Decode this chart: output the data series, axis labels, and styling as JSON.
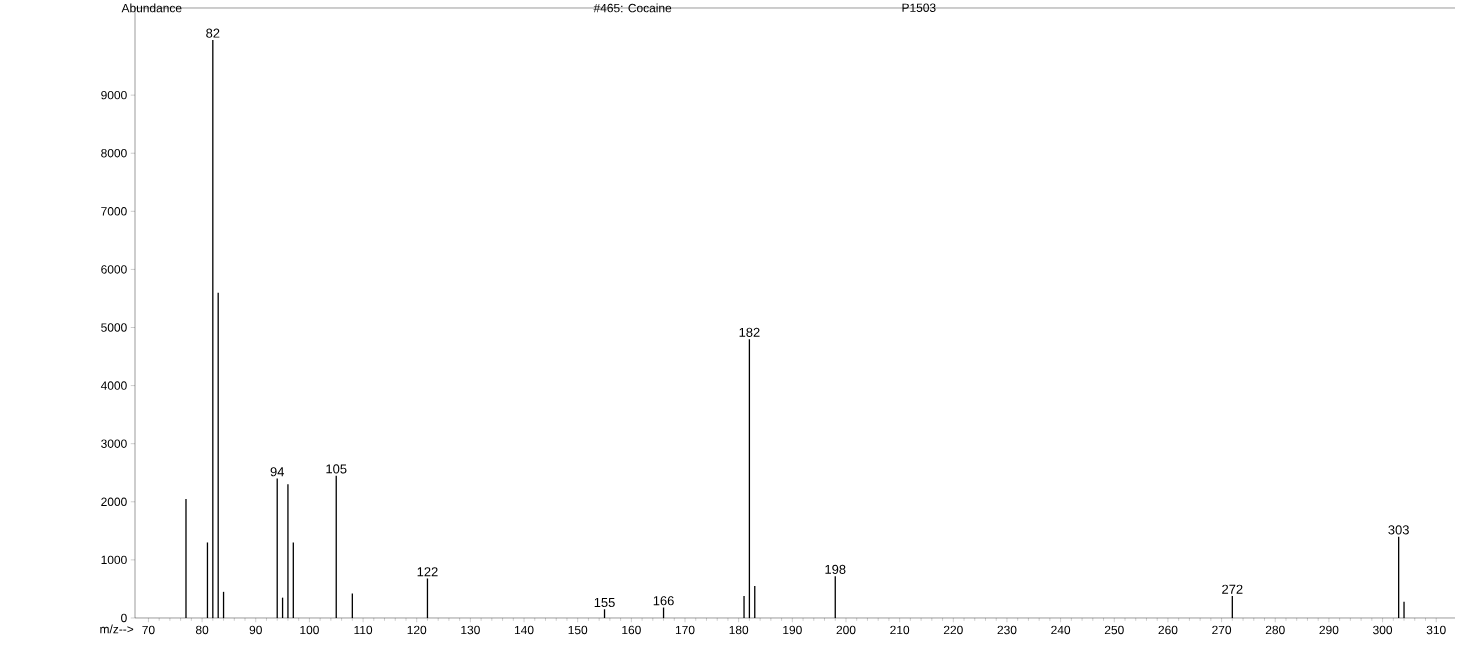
{
  "chart_data": {
    "type": "bar",
    "title": "#465: Cocaine",
    "subtitle": "P1503",
    "xlabel": "m/z-->",
    "ylabel": "Abundance",
    "x": [
      77,
      81,
      82,
      83,
      84,
      94,
      95,
      96,
      97,
      105,
      108,
      122,
      155,
      166,
      181,
      182,
      183,
      198,
      272,
      303,
      304
    ],
    "values": [
      2050,
      1300,
      9950,
      5600,
      450,
      2400,
      350,
      2300,
      1300,
      2450,
      420,
      680,
      150,
      180,
      380,
      4800,
      550,
      720,
      380,
      1400,
      280
    ],
    "color": "#000000",
    "xlim": [
      67.5,
      313.5
    ],
    "ylim": [
      0,
      10500
    ],
    "xticks": [
      70,
      80,
      90,
      100,
      110,
      120,
      130,
      140,
      150,
      160,
      170,
      180,
      190,
      200,
      210,
      220,
      230,
      240,
      250,
      260,
      270,
      280,
      290,
      300,
      310
    ],
    "yticks": [
      0,
      1000,
      2000,
      3000,
      4000,
      5000,
      6000,
      7000,
      8000,
      9000
    ],
    "annotations": [
      {
        "text": "82",
        "x": 82,
        "y": 9950
      },
      {
        "text": "94",
        "x": 94,
        "y": 2400
      },
      {
        "text": "105",
        "x": 105,
        "y": 2450
      },
      {
        "text": "122",
        "x": 122,
        "y": 680
      },
      {
        "text": "155",
        "x": 155,
        "y": 150
      },
      {
        "text": "166",
        "x": 166,
        "y": 180
      },
      {
        "text": "182",
        "x": 182,
        "y": 4800
      },
      {
        "text": "198",
        "x": 198,
        "y": 720
      },
      {
        "text": "272",
        "x": 272,
        "y": 380
      },
      {
        "text": "303",
        "x": 303,
        "y": 1400
      }
    ],
    "grid": false
  }
}
